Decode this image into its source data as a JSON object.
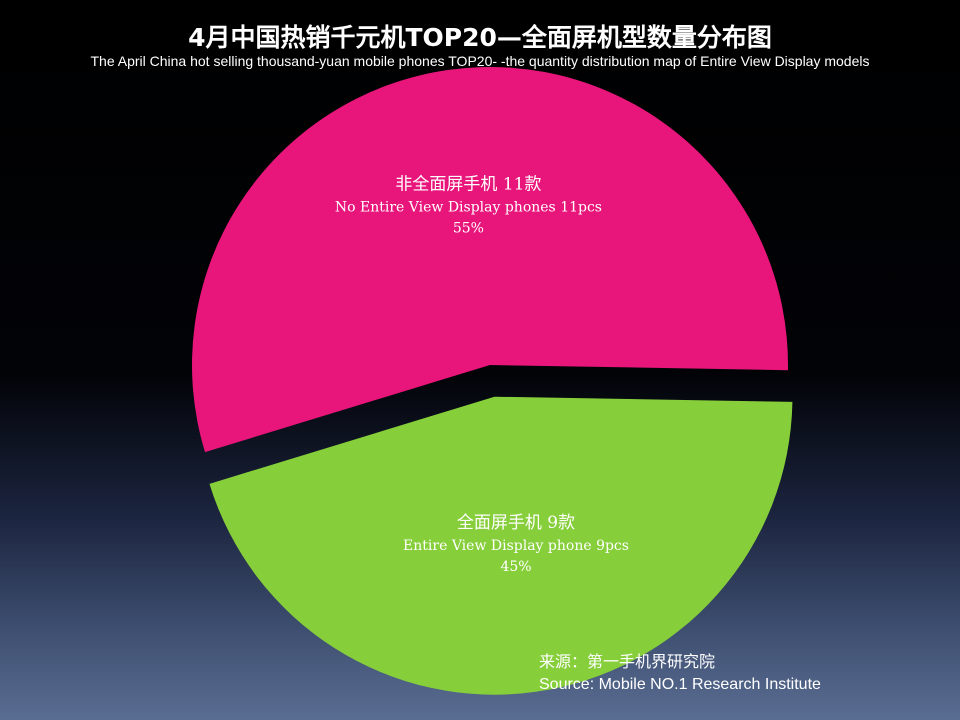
{
  "title": "4月中国热销千元机TOP20—全面屏机型数量分布图",
  "subtitle": "The April China hot selling thousand-yuan mobile phones TOP20- -the quantity distribution map of Entire View Display models",
  "chart_data": {
    "type": "pie",
    "slices": [
      {
        "name_cn": "非全面屏手机 11款",
        "name_en": "No Entire View Display phones 11pcs",
        "count": 11,
        "percent": 55,
        "percent_label": "55%",
        "color": "#E8157B",
        "exploded": false
      },
      {
        "name_cn": "全面屏手机 9款",
        "name_en": "Entire View Display phone 9pcs",
        "count": 9,
        "percent": 45,
        "percent_label": "45%",
        "color": "#86CF3A",
        "exploded": true
      }
    ]
  },
  "source": {
    "cn": "来源：第一手机界研究院",
    "en": "Source: Mobile NO.1 Research Institute"
  }
}
